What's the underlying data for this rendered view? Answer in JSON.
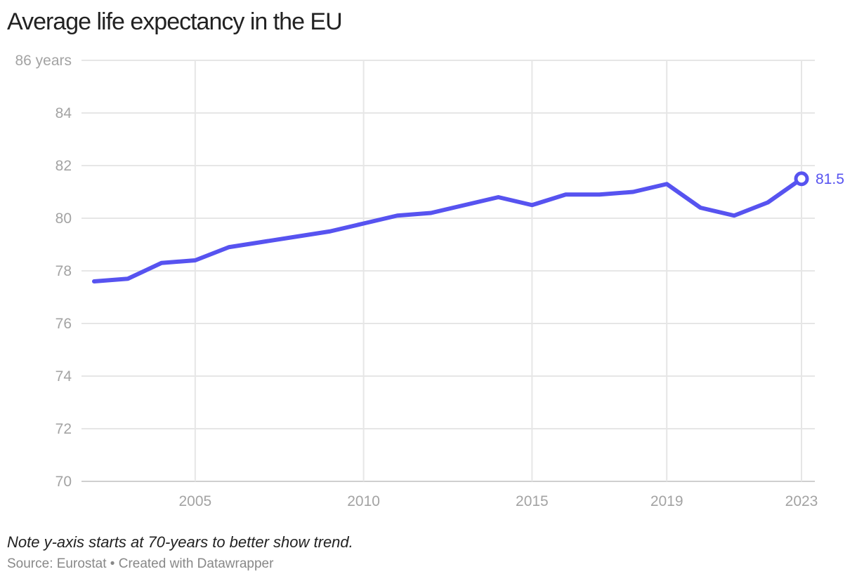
{
  "chart_data": {
    "type": "line",
    "title": "Average life expectancy in the EU",
    "xlabel": "",
    "ylabel": "",
    "y_unit_suffix": " years",
    "ylim": [
      70,
      86
    ],
    "yticks": [
      70,
      72,
      74,
      76,
      78,
      80,
      82,
      84,
      86
    ],
    "xlim": [
      2002,
      2023
    ],
    "xticks": [
      2005,
      2010,
      2015,
      2019,
      2023
    ],
    "grid": true,
    "series": [
      {
        "name": "Life expectancy",
        "x": [
          2002,
          2003,
          2004,
          2005,
          2006,
          2007,
          2008,
          2009,
          2010,
          2011,
          2012,
          2013,
          2014,
          2015,
          2016,
          2017,
          2018,
          2019,
          2020,
          2021,
          2022,
          2023
        ],
        "values": [
          77.6,
          77.7,
          78.3,
          78.4,
          78.9,
          79.1,
          79.3,
          79.5,
          79.8,
          80.1,
          80.2,
          80.5,
          80.8,
          80.5,
          80.9,
          80.9,
          81.0,
          81.3,
          80.4,
          80.1,
          80.6,
          81.5
        ]
      }
    ],
    "end_label": "81.5"
  },
  "note": "Note y-axis starts at 70-years to better show trend.",
  "footer": "Source: Eurostat • Created with Datawrapper",
  "colors": {
    "line": "#5753f0",
    "grid": "#e6e6e6",
    "tick": "#a3a3a3"
  }
}
